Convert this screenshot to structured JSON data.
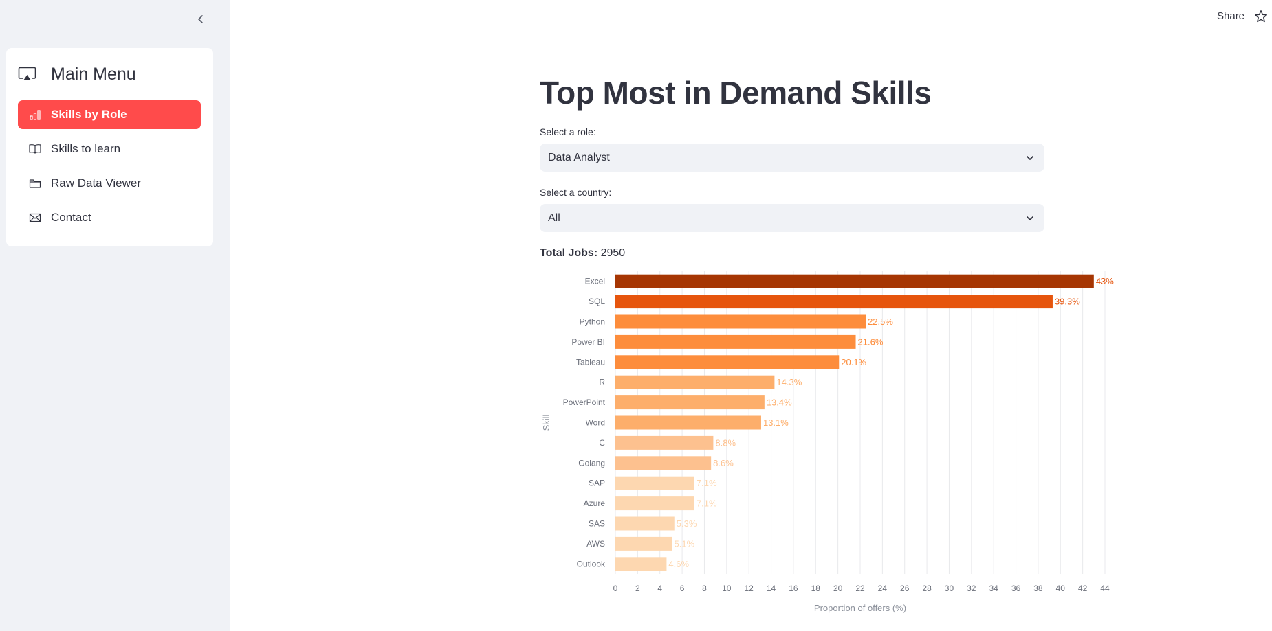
{
  "sidebar": {
    "menu_title": "Main Menu",
    "items": [
      {
        "label": "Skills by Role",
        "icon": "bar-chart-icon",
        "active": true
      },
      {
        "label": "Skills to learn",
        "icon": "book-icon",
        "active": false
      },
      {
        "label": "Raw Data Viewer",
        "icon": "folder-icon",
        "active": false
      },
      {
        "label": "Contact",
        "icon": "envelope-icon",
        "active": false
      }
    ]
  },
  "topbar": {
    "share_label": "Share"
  },
  "main": {
    "title": "Top Most in Demand Skills",
    "role_label": "Select a role:",
    "role_value": "Data Analyst",
    "country_label": "Select a country:",
    "country_value": "All",
    "total_jobs_label": "Total Jobs:",
    "total_jobs_value": "2950"
  },
  "colors": {
    "accent": "#ff4b4b",
    "sidebar_bg": "#f0f2f6",
    "bar_scale": [
      "#fdd7b0",
      "#fdc18f",
      "#fdae6b",
      "#fd8d3c",
      "#e6550d",
      "#a63603"
    ]
  },
  "chart_data": {
    "type": "bar",
    "orientation": "horizontal",
    "categories": [
      "Excel",
      "SQL",
      "Python",
      "Power BI",
      "Tableau",
      "R",
      "PowerPoint",
      "Word",
      "C",
      "Golang",
      "SAP",
      "Azure",
      "SAS",
      "AWS",
      "Outlook"
    ],
    "values": [
      43,
      39.3,
      22.5,
      21.6,
      20.1,
      14.3,
      13.4,
      13.1,
      8.8,
      8.6,
      7.1,
      7.1,
      5.3,
      5.1,
      4.6
    ],
    "data_labels": [
      "43%",
      "39.3%",
      "22.5%",
      "21.6%",
      "20.1%",
      "14.3%",
      "13.4%",
      "13.1%",
      "8.8%",
      "8.6%",
      "7.1%",
      "7.1%",
      "5.3%",
      "5.1%",
      "4.6%"
    ],
    "xlabel": "Proportion of offers (%)",
    "ylabel": "Skill",
    "xlim": [
      0,
      44
    ],
    "xticks": [
      0,
      2,
      4,
      6,
      8,
      10,
      12,
      14,
      16,
      18,
      20,
      22,
      24,
      26,
      28,
      30,
      32,
      34,
      36,
      38,
      40,
      42,
      44
    ],
    "grid": true,
    "color_scale": "oranges"
  }
}
